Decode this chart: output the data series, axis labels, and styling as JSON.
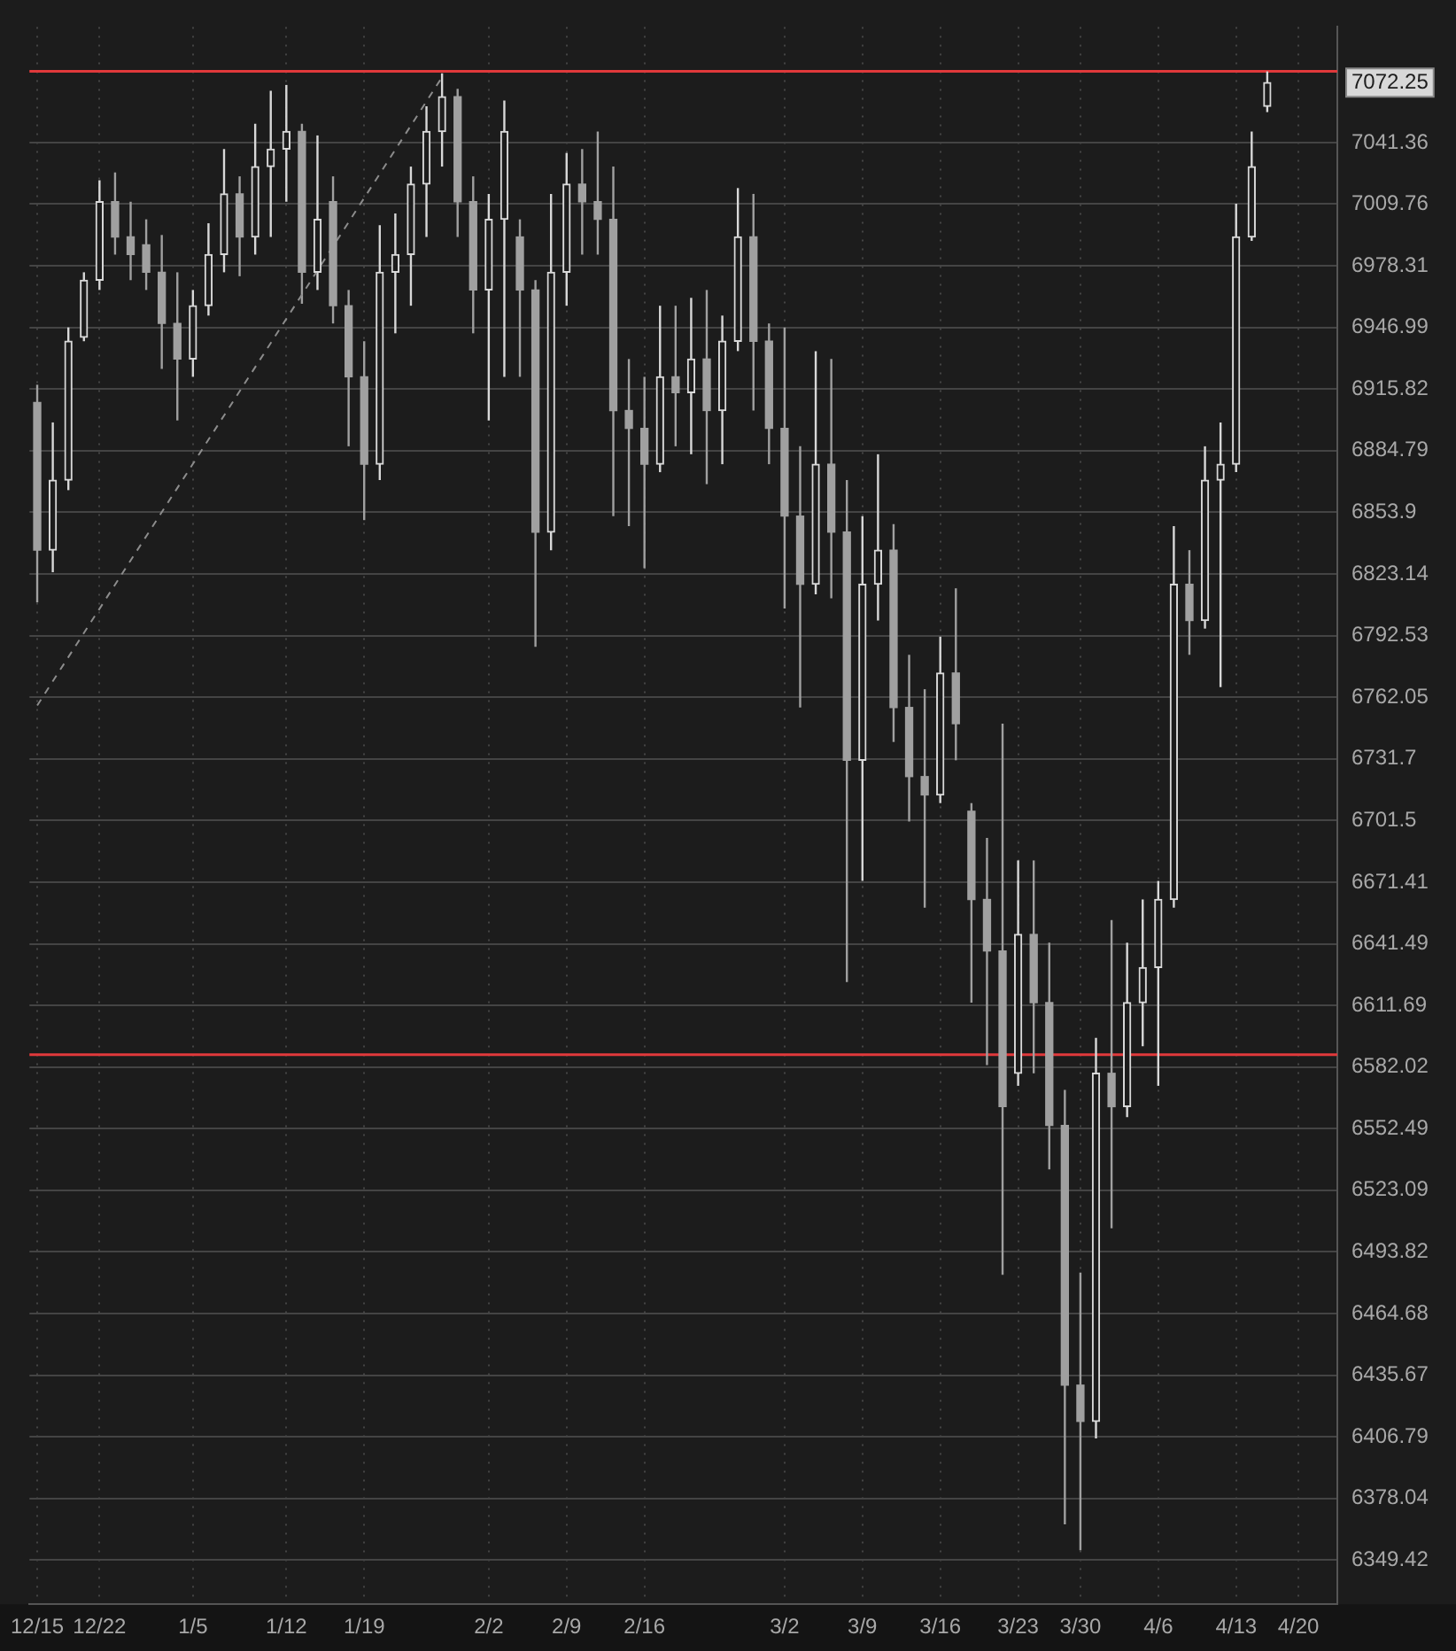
{
  "chart_data": {
    "type": "candlestick",
    "categories": [
      "12/15",
      null,
      null,
      null,
      "12/22",
      null,
      null,
      null,
      null,
      null,
      "1/5",
      null,
      null,
      null,
      null,
      null,
      "1/12",
      null,
      null,
      null,
      null,
      "1/19",
      null,
      null,
      null,
      null,
      null,
      null,
      null,
      "2/2",
      null,
      null,
      null,
      null,
      "2/9",
      null,
      null,
      null,
      null,
      "2/16",
      null,
      null,
      null,
      null,
      null,
      null,
      null,
      null,
      "3/2",
      null,
      null,
      null,
      null,
      "3/9",
      null,
      null,
      null,
      null,
      "3/16",
      null,
      null,
      null,
      null,
      "3/23",
      null,
      null,
      null,
      "3/30",
      null,
      null,
      null,
      null,
      "4/6",
      null,
      null,
      null,
      null,
      "4/13",
      null,
      null,
      null,
      "4/20",
      null,
      null
    ],
    "ohlc": [
      [
        6909,
        6918,
        6809,
        6835
      ],
      [
        6835,
        6899,
        6824,
        6870
      ],
      [
        6870,
        6947,
        6865,
        6940
      ],
      [
        6942,
        6975,
        6940,
        6971
      ],
      [
        6971,
        7022,
        6966,
        7011
      ],
      [
        7011,
        7026,
        6984,
        6993
      ],
      [
        6993,
        7011,
        6971,
        6984
      ],
      [
        6989,
        7002,
        6966,
        6975
      ],
      [
        6975,
        6994,
        6926,
        6949
      ],
      [
        6949,
        6975,
        6900,
        6931
      ],
      [
        6931,
        6966,
        6922,
        6958
      ],
      [
        6958,
        7000,
        6953,
        6984
      ],
      [
        6984,
        7038,
        6975,
        7015
      ],
      [
        7015,
        7024,
        6973,
        6993
      ],
      [
        6993,
        7051,
        6984,
        7029
      ],
      [
        7029,
        7068,
        6993,
        7038
      ],
      [
        7038,
        7071,
        7011,
        7047
      ],
      [
        7047,
        7051,
        6959,
        6975
      ],
      [
        6975,
        7045,
        6966,
        7002
      ],
      [
        7011,
        7024,
        6949,
        6958
      ],
      [
        6958,
        6966,
        6887,
        6922
      ],
      [
        6922,
        6940,
        6850,
        6878
      ],
      [
        6878,
        6999,
        6870,
        6975
      ],
      [
        6975,
        7005,
        6944,
        6984
      ],
      [
        6984,
        7029,
        6958,
        7020
      ],
      [
        7020,
        7060,
        6993,
        7047
      ],
      [
        7047,
        7077,
        7029,
        7065
      ],
      [
        7065,
        7069,
        6993,
        7011
      ],
      [
        7011,
        7024,
        6944,
        6966
      ],
      [
        6966,
        7015,
        6900,
        7002
      ],
      [
        7002,
        7063,
        6922,
        7047
      ],
      [
        6993,
        7002,
        6922,
        6966
      ],
      [
        6966,
        6971,
        6787,
        6844
      ],
      [
        6844,
        7015,
        6835,
        6975
      ],
      [
        6975,
        7036,
        6958,
        7020
      ],
      [
        7020,
        7038,
        6984,
        7011
      ],
      [
        7011,
        7047,
        6984,
        7002
      ],
      [
        7002,
        7029,
        6852,
        6905
      ],
      [
        6905,
        6931,
        6847,
        6896
      ],
      [
        6896,
        6922,
        6826,
        6878
      ],
      [
        6878,
        6958,
        6874,
        6922
      ],
      [
        6922,
        6958,
        6887,
        6914
      ],
      [
        6914,
        6962,
        6883,
        6931
      ],
      [
        6931,
        6966,
        6868,
        6905
      ],
      [
        6905,
        6953,
        6878,
        6940
      ],
      [
        6940,
        7018,
        6935,
        6993
      ],
      [
        6993,
        7015,
        6905,
        6940
      ],
      [
        6940,
        6949,
        6878,
        6896
      ],
      [
        6896,
        6947,
        6806,
        6852
      ],
      [
        6852,
        6887,
        6757,
        6818
      ],
      [
        6818,
        6935,
        6813,
        6878
      ],
      [
        6878,
        6931,
        6811,
        6844
      ],
      [
        6844,
        6870,
        6623,
        6731
      ],
      [
        6731,
        6852,
        6672,
        6818
      ],
      [
        6818,
        6883,
        6800,
        6835
      ],
      [
        6835,
        6848,
        6740,
        6757
      ],
      [
        6757,
        6783,
        6701,
        6723
      ],
      [
        6723,
        6766,
        6659,
        6714
      ],
      [
        6714,
        6792,
        6710,
        6774
      ],
      [
        6774,
        6816,
        6731,
        6749
      ],
      [
        6706,
        6710,
        6613,
        6663
      ],
      [
        6663,
        6693,
        6583,
        6638
      ],
      [
        6638,
        6749,
        6483,
        6563
      ],
      [
        6579,
        6682,
        6573,
        6646
      ],
      [
        6646,
        6682,
        6579,
        6613
      ],
      [
        6613,
        6642,
        6533,
        6554
      ],
      [
        6554,
        6571,
        6366,
        6431
      ],
      [
        6431,
        6484,
        6354,
        6414
      ],
      [
        6414,
        6596,
        6406,
        6579
      ],
      [
        6579,
        6653,
        6505,
        6563
      ],
      [
        6563,
        6642,
        6558,
        6613
      ],
      [
        6613,
        6663,
        6592,
        6630
      ],
      [
        6630,
        6672,
        6573,
        6663
      ],
      [
        6663,
        6847,
        6659,
        6818
      ],
      [
        6818,
        6835,
        6783,
        6800
      ],
      [
        6800,
        6887,
        6796,
        6870
      ],
      [
        6870,
        6899,
        6767,
        6878
      ],
      [
        6878,
        7010,
        6874,
        6993
      ],
      [
        6993,
        7047,
        6991,
        7029
      ],
      [
        7060,
        7078,
        7057,
        7072.25
      ],
      null,
      null,
      null,
      null
    ],
    "colors": [
      "#a0a0a0",
      "#d8d8d8",
      "#d8d8d8",
      "#d8d8d8",
      "#d8d8d8",
      "#a0a0a0",
      "#a0a0a0",
      "#a0a0a0",
      "#a0a0a0",
      "#a0a0a0",
      "#d8d8d8",
      "#d8d8d8",
      "#d8d8d8",
      "#a0a0a0",
      "#d8d8d8",
      "#d8d8d8",
      "#d8d8d8",
      "#a0a0a0",
      "#d8d8d8",
      "#a0a0a0",
      "#a0a0a0",
      "#a0a0a0",
      "#d8d8d8",
      "#d8d8d8",
      "#d8d8d8",
      "#d8d8d8",
      "#d8d8d8",
      "#a0a0a0",
      "#a0a0a0",
      "#d8d8d8",
      "#d8d8d8",
      "#a0a0a0",
      "#a0a0a0",
      "#d8d8d8",
      "#d8d8d8",
      "#a0a0a0",
      "#a0a0a0",
      "#a0a0a0",
      "#a0a0a0",
      "#a0a0a0",
      "#d8d8d8",
      "#a0a0a0",
      "#d8d8d8",
      "#a0a0a0",
      "#d8d8d8",
      "#d8d8d8",
      "#a0a0a0",
      "#a0a0a0",
      "#a0a0a0",
      "#a0a0a0",
      "#d8d8d8",
      "#a0a0a0",
      "#a0a0a0",
      "#d8d8d8",
      "#d8d8d8",
      "#a0a0a0",
      "#a0a0a0",
      "#a0a0a0",
      "#d8d8d8",
      "#a0a0a0",
      "#a0a0a0",
      "#a0a0a0",
      "#a0a0a0",
      "#d8d8d8",
      "#a0a0a0",
      "#a0a0a0",
      "#a0a0a0",
      "#a0a0a0",
      "#d8d8d8",
      "#a0a0a0",
      "#d8d8d8",
      "#d8d8d8",
      "#d8d8d8",
      "#d8d8d8",
      "#a0a0a0",
      "#d8d8d8",
      "#d8d8d8",
      "#d8d8d8",
      "#d8d8d8",
      "#d8d8d8",
      null,
      null,
      null,
      null
    ],
    "series": [
      {
        "type": "line",
        "color": "#8c8c8c",
        "line_style": "dashed",
        "values": [
          6758,
          null,
          null,
          null,
          null,
          null,
          null,
          null,
          null,
          null,
          null,
          null,
          null,
          null,
          null,
          null,
          null,
          null,
          null,
          null,
          null,
          null,
          null,
          null,
          null,
          null,
          7075,
          null,
          null,
          null,
          null,
          null,
          null,
          null,
          null,
          null,
          null,
          null,
          null,
          null,
          null,
          null,
          null,
          null,
          null,
          null,
          null,
          null,
          null,
          null,
          null,
          null,
          null,
          null,
          null,
          null,
          null,
          null,
          null,
          null,
          null,
          null,
          null,
          null,
          null,
          null,
          null,
          null,
          null,
          null,
          null,
          null,
          null,
          null,
          null,
          null,
          null,
          null,
          null,
          null,
          null,
          null,
          null,
          null
        ]
      }
    ],
    "log": "y",
    "ylim": [
      6329,
      7101
    ],
    "yticks": [
      6349.42,
      6378.04,
      6406.79,
      6435.67,
      6464.68,
      6493.82,
      6523.09,
      6552.49,
      6582.02,
      6611.69,
      6641.49,
      6671.41,
      6701.5,
      6731.7,
      6762.05,
      6792.53,
      6823.14,
      6853.9,
      6884.79,
      6915.82,
      6946.99,
      6978.31,
      7009.76,
      7041.36
    ],
    "ref_lines": [
      {
        "axis": "y",
        "value": 7078,
        "color": "#e0393b"
      },
      {
        "axis": "y",
        "value": 6588,
        "color": "#e0393b"
      }
    ],
    "annotations": [
      "7072.25"
    ],
    "grid": true,
    "legend": false
  }
}
